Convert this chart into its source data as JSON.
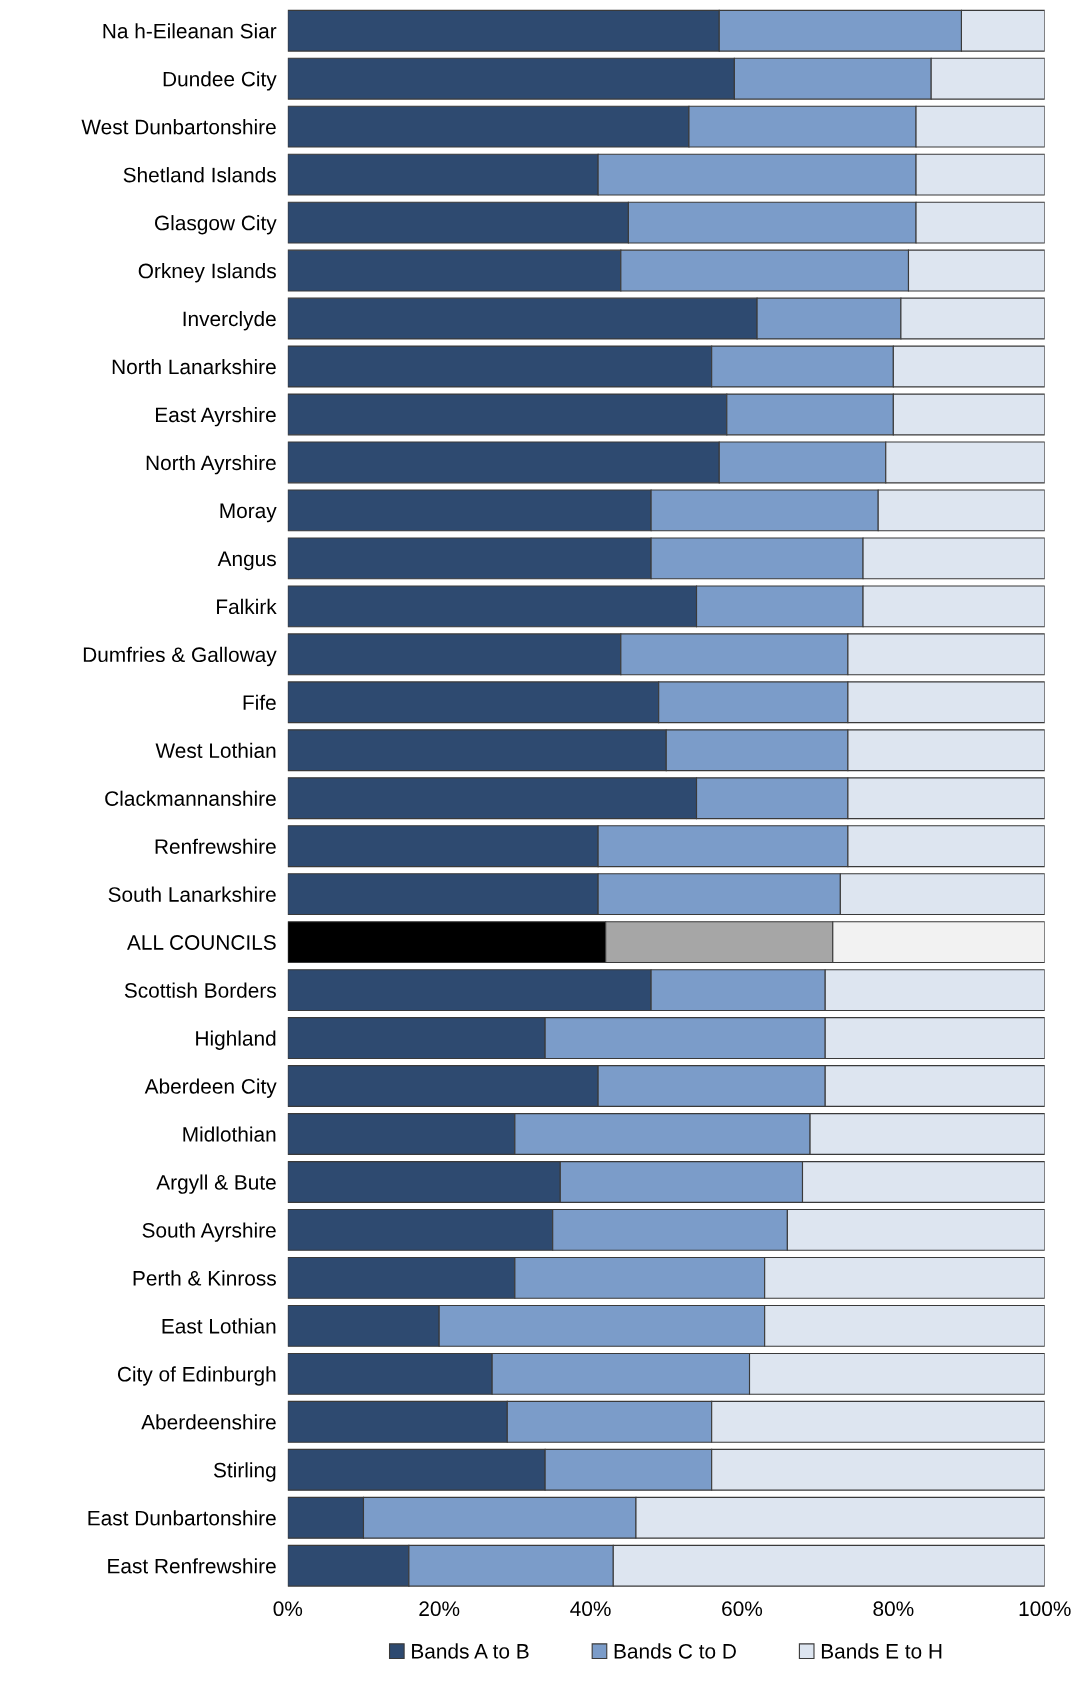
{
  "chart_data": {
    "type": "bar",
    "orientation": "horizontal",
    "stacked": true,
    "categories": [
      "Na h-Eileanan Siar",
      "Dundee City",
      "West Dunbartonshire",
      "Shetland Islands",
      "Glasgow City",
      "Orkney Islands",
      "Inverclyde",
      "North Lanarkshire",
      "East Ayrshire",
      "North Ayrshire",
      "Moray",
      "Angus",
      "Falkirk",
      "Dumfries & Galloway",
      "Fife",
      "West Lothian",
      "Clackmannanshire",
      "Renfrewshire",
      "South Lanarkshire",
      "ALL COUNCILS",
      "Scottish Borders",
      "Highland",
      "Aberdeen City",
      "Midlothian",
      "Argyll & Bute",
      "South Ayrshire",
      "Perth & Kinross",
      "East Lothian",
      "City of Edinburgh",
      "Aberdeenshire",
      "Stirling",
      "East Dunbartonshire",
      "East Renfrewshire"
    ],
    "series": [
      {
        "name": "Bands A to B",
        "color": "#2e4a70",
        "colors": [
          "#2e4a70",
          "#2e4a70",
          "#2e4a70",
          "#2e4a70",
          "#2e4a70",
          "#2e4a70",
          "#2e4a70",
          "#2e4a70",
          "#2e4a70",
          "#2e4a70",
          "#2e4a70",
          "#2e4a70",
          "#2e4a70",
          "#2e4a70",
          "#2e4a70",
          "#2e4a70",
          "#2e4a70",
          "#2e4a70",
          "#2e4a70",
          "#000000",
          "#2e4a70",
          "#2e4a70",
          "#2e4a70",
          "#2e4a70",
          "#2e4a70",
          "#2e4a70",
          "#2e4a70",
          "#2e4a70",
          "#2e4a70",
          "#2e4a70",
          "#2e4a70",
          "#2e4a70",
          "#2e4a70"
        ],
        "values": [
          57,
          59,
          53,
          41,
          45,
          44,
          62,
          56,
          58,
          57,
          48,
          48,
          54,
          44,
          49,
          50,
          54,
          41,
          41,
          42,
          48,
          34,
          41,
          30,
          36,
          35,
          30,
          20,
          27,
          29,
          34,
          10,
          16
        ]
      },
      {
        "name": "Bands C to D",
        "color": "#7b9cc9",
        "colors": [
          "#7b9cc9",
          "#7b9cc9",
          "#7b9cc9",
          "#7b9cc9",
          "#7b9cc9",
          "#7b9cc9",
          "#7b9cc9",
          "#7b9cc9",
          "#7b9cc9",
          "#7b9cc9",
          "#7b9cc9",
          "#7b9cc9",
          "#7b9cc9",
          "#7b9cc9",
          "#7b9cc9",
          "#7b9cc9",
          "#7b9cc9",
          "#7b9cc9",
          "#7b9cc9",
          "#a6a6a6",
          "#7b9cc9",
          "#7b9cc9",
          "#7b9cc9",
          "#7b9cc9",
          "#7b9cc9",
          "#7b9cc9",
          "#7b9cc9",
          "#7b9cc9",
          "#7b9cc9",
          "#7b9cc9",
          "#7b9cc9",
          "#7b9cc9",
          "#7b9cc9"
        ],
        "values": [
          32,
          26,
          30,
          42,
          38,
          38,
          19,
          24,
          22,
          22,
          30,
          28,
          22,
          30,
          25,
          24,
          20,
          33,
          32,
          30,
          23,
          37,
          30,
          39,
          32,
          31,
          33,
          43,
          34,
          27,
          22,
          36,
          27
        ]
      },
      {
        "name": "Bands E to H",
        "color": "#dde5f0",
        "colors": [
          "#dde5f0",
          "#dde5f0",
          "#dde5f0",
          "#dde5f0",
          "#dde5f0",
          "#dde5f0",
          "#dde5f0",
          "#dde5f0",
          "#dde5f0",
          "#dde5f0",
          "#dde5f0",
          "#dde5f0",
          "#dde5f0",
          "#dde5f0",
          "#dde5f0",
          "#dde5f0",
          "#dde5f0",
          "#dde5f0",
          "#dde5f0",
          "#f2f2f2",
          "#dde5f0",
          "#dde5f0",
          "#dde5f0",
          "#dde5f0",
          "#dde5f0",
          "#dde5f0",
          "#dde5f0",
          "#dde5f0",
          "#dde5f0",
          "#dde5f0",
          "#dde5f0",
          "#dde5f0",
          "#dde5f0"
        ],
        "values": [
          11,
          15,
          17,
          17,
          17,
          18,
          19,
          20,
          20,
          21,
          22,
          24,
          24,
          26,
          26,
          26,
          26,
          26,
          27,
          28,
          29,
          29,
          29,
          31,
          32,
          34,
          37,
          37,
          39,
          44,
          44,
          54,
          57
        ]
      }
    ],
    "xlim": [
      0,
      100
    ],
    "xticks": [
      {
        "value": 0,
        "label": "0%"
      },
      {
        "value": 20,
        "label": "20%"
      },
      {
        "value": 40,
        "label": "40%"
      },
      {
        "value": 60,
        "label": "60%"
      },
      {
        "value": 80,
        "label": "80%"
      },
      {
        "value": 100,
        "label": "100%"
      }
    ],
    "legend": "bottom",
    "grid": false
  }
}
